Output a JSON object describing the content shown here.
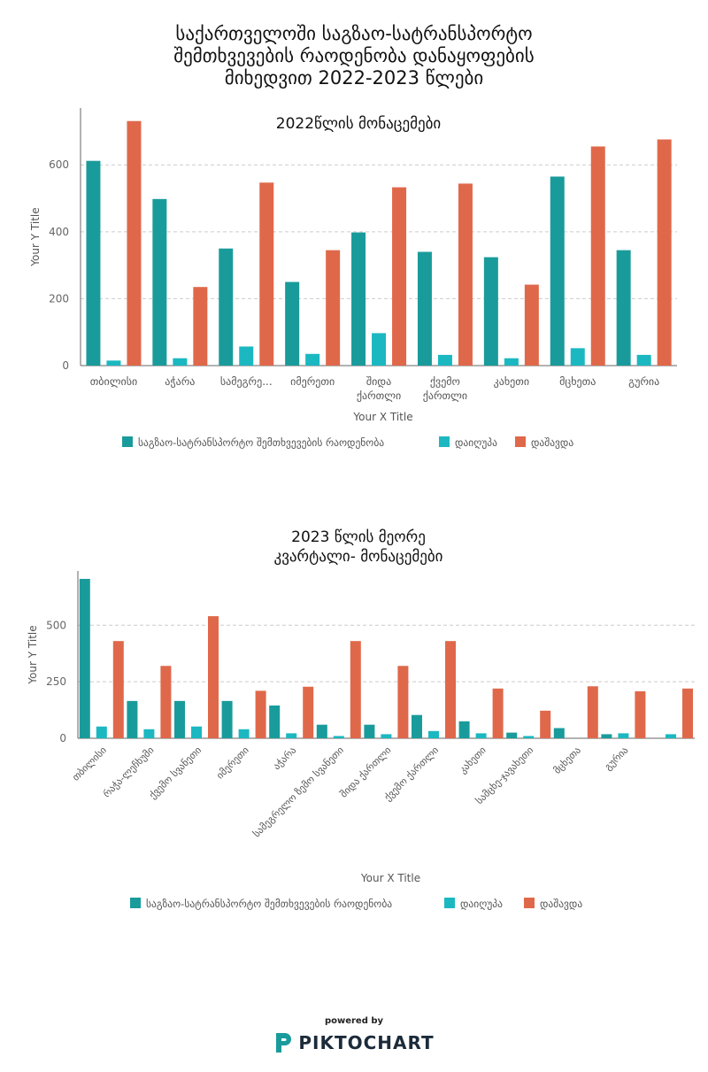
{
  "page": {
    "title_lines": [
      "საქართველოში საგზაო-სატრანსპორტო",
      "შემთხვევების რაოდენობა დანაყოფების",
      "მიხედვით 2022-2023 წლები"
    ],
    "powered_by": "powered by",
    "brand": "PIKTOCHART"
  },
  "colors": {
    "series": [
      "#1a9b9b",
      "#1bb8c1",
      "#e0684a"
    ],
    "axis": "#666666",
    "grid": "#cccccc",
    "text": "#555555"
  },
  "chart_data": [
    {
      "type": "bar",
      "title_lines": [
        "2022წლის მონაცემები"
      ],
      "xlabel": "Your X Title",
      "ylabel": "Your Y Title",
      "ylim": [
        0,
        770
      ],
      "yticks": [
        0,
        200,
        400,
        600
      ],
      "grid": true,
      "legend_position": "bottom",
      "categories": [
        "თბილისი",
        "აჭარა",
        "სამეგრე...",
        "იმერეთი",
        "შიდა ქართლი",
        "ქვემო ქართლი",
        "კახეთი",
        "მცხეთა",
        "გურია"
      ],
      "series": [
        {
          "name": "საგზაო-სატრანსპორტო შემთხვევების რაოდენობა",
          "values": [
            612,
            498,
            350,
            250,
            398,
            340,
            324,
            565,
            345
          ]
        },
        {
          "name": "დაიღუპა",
          "values": [
            15,
            22,
            57,
            35,
            97,
            32,
            22,
            52,
            32
          ]
        },
        {
          "name": "დაშავდა",
          "values": [
            731,
            235,
            547,
            345,
            533,
            544,
            242,
            655,
            676
          ]
        }
      ]
    },
    {
      "type": "bar",
      "title_lines": [
        "2023 წლის მეორე",
        "კვარტალი- მონაცემები"
      ],
      "xlabel": "Your X Title",
      "ylabel": "Your Y Title",
      "ylim": [
        0,
        740
      ],
      "yticks": [
        0,
        250,
        500
      ],
      "grid": true,
      "legend_position": "bottom",
      "categories": [
        "თბილისი",
        "რაჭა-ლეჩხუმი",
        "ქვემო სვანეთი",
        "იმერეთი",
        "აჭარა",
        "სამეგრელო ზემო სვანეთი",
        "შიდა ქართლი",
        "ქვემო ქართლი",
        "კახეთი",
        "სამცხე-ჯავახეთი",
        "მცხეთა",
        "გურია",
        ""
      ],
      "series": [
        {
          "name": "საგზაო-სატრანსპორტო შემთხვევების რაოდენობა",
          "values": [
            705,
            165,
            165,
            165,
            145,
            60,
            60,
            103,
            75,
            25,
            45,
            18,
            0
          ]
        },
        {
          "name": "დაიღუპა",
          "values": [
            52,
            40,
            52,
            40,
            22,
            10,
            18,
            32,
            22,
            10,
            0,
            22,
            18
          ]
        },
        {
          "name": "დაშავდა",
          "values": [
            430,
            320,
            540,
            210,
            228,
            430,
            320,
            430,
            220,
            122,
            230,
            208,
            220
          ]
        }
      ]
    }
  ]
}
